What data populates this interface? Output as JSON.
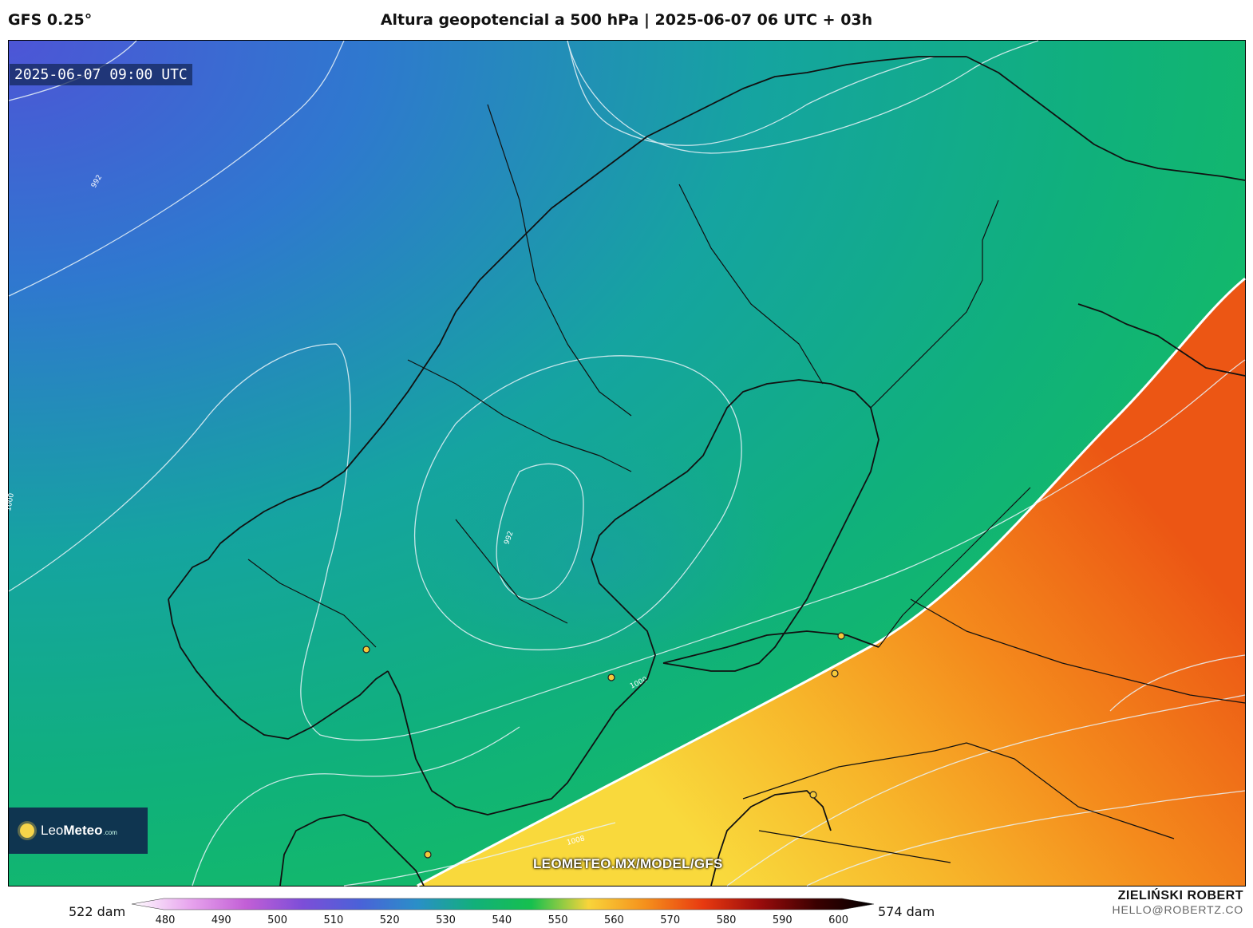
{
  "header": {
    "model": "GFS 0.25°",
    "title": "Altura geopotencial a 500 hPa | 2025-06-07 06 UTC + 03h"
  },
  "map": {
    "valid_time": "2025-06-07 09:00 UTC",
    "watermark": "LEOMETEO.MX/MODEL/GFS",
    "isobar_labels": [
      "992",
      "1000",
      "992",
      "1000",
      "1008"
    ],
    "colors": {
      "low_heights": "#4a55d8",
      "mid_heights": "#12b07a",
      "threshold_552": "#19c24a",
      "high_heights": "#f5c93a",
      "highest_heights": "#ef4e14"
    }
  },
  "logo": {
    "brand_light": "Leo",
    "brand_bold": "Meteo",
    "suffix": ".com"
  },
  "colorbar": {
    "min_label": "522 dam",
    "max_label": "574 dam",
    "ticks": [
      "480",
      "490",
      "500",
      "510",
      "520",
      "530",
      "540",
      "550",
      "560",
      "570",
      "580",
      "590",
      "600"
    ],
    "stops": [
      "#ffffff",
      "#e8a6ee",
      "#c25fd6",
      "#7c4ed8",
      "#4a62d8",
      "#2a8fc8",
      "#12b07a",
      "#16c04e",
      "#f8d43a",
      "#f5901c",
      "#e83a10",
      "#9a0c0c",
      "#3a0000",
      "#000000"
    ]
  },
  "author": {
    "name": "ZIELIŃSKI ROBERT",
    "email": "HELLO@ROBERTZ.CO"
  }
}
